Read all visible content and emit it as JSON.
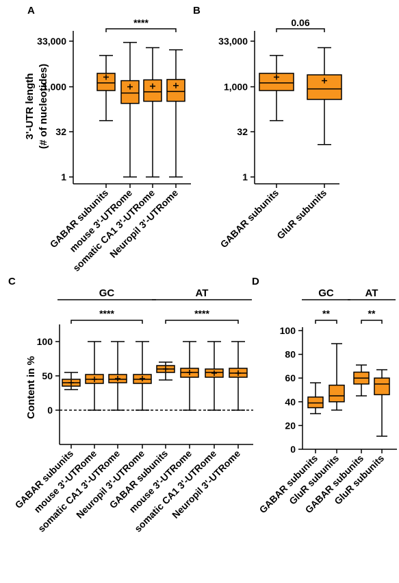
{
  "chart_data": [
    {
      "panel": "A",
      "type": "box",
      "ylabel": [
        "3'-UTR length",
        "(# of nucleotides)"
      ],
      "yscale": "log",
      "ylim": [
        1,
        33000
      ],
      "yticks": [
        {
          "v": 1,
          "label": "1"
        },
        {
          "v": 32,
          "label": "32"
        },
        {
          "v": 1000,
          "label": "1,000"
        },
        {
          "v": 33000,
          "label": "33,000"
        }
      ],
      "categories": [
        "GABAR subunits",
        "mouse 3'-UTRome",
        "somatic CA1 3'-UTRome",
        "Neuropil 3'-UTRome"
      ],
      "boxes": [
        {
          "min": 75,
          "q1": 750,
          "median": 1350,
          "q3": 2800,
          "max": 11000,
          "mean": 2100
        },
        {
          "min": 1,
          "q1": 280,
          "median": 620,
          "q3": 1600,
          "max": 30000,
          "mean": 1000
        },
        {
          "min": 1,
          "q1": 330,
          "median": 680,
          "q3": 1700,
          "max": 20000,
          "mean": 1050
        },
        {
          "min": 1,
          "q1": 330,
          "median": 700,
          "q3": 1750,
          "max": 17000,
          "mean": 1100
        }
      ],
      "significance": [
        {
          "from": 0,
          "to": 3,
          "label": "****"
        }
      ]
    },
    {
      "panel": "B",
      "type": "box",
      "yscale": "log",
      "ylim": [
        1,
        33000
      ],
      "yticks": [
        {
          "v": 1,
          "label": "1"
        },
        {
          "v": 32,
          "label": "32"
        },
        {
          "v": 1000,
          "label": "1,000"
        },
        {
          "v": 33000,
          "label": "33,000"
        }
      ],
      "categories": [
        "GABAR subunits",
        "GluR subunits"
      ],
      "boxes": [
        {
          "min": 75,
          "q1": 750,
          "median": 1350,
          "q3": 2800,
          "max": 11000,
          "mean": 2100
        },
        {
          "min": 12,
          "q1": 380,
          "median": 850,
          "q3": 2500,
          "max": 20000,
          "mean": 1600
        }
      ],
      "significance": [
        {
          "from": 0,
          "to": 1,
          "label": "0.06"
        }
      ]
    },
    {
      "panel": "C",
      "type": "box",
      "ylabel": [
        "Content in %"
      ],
      "yscale": "linear",
      "ylim": [
        -50,
        120
      ],
      "yticks": [
        {
          "v": 0,
          "label": "0"
        },
        {
          "v": 50,
          "label": "50"
        },
        {
          "v": 100,
          "label": "100"
        }
      ],
      "categories": [
        "GABAR subunits",
        "mouse 3'-UTRome",
        "somatic CA1 3'-UTRome",
        "Neuropil 3'-UTRome",
        "GABAR subunits",
        "mouse 3'-UTRome",
        "somatic CA1 3'-UTRome",
        "Neuropil 3'-UTRome"
      ],
      "boxes": [
        {
          "min": 30,
          "q1": 35,
          "median": 40,
          "q3": 45,
          "max": 55,
          "mean": 40
        },
        {
          "min": 0,
          "q1": 39,
          "median": 45,
          "q3": 52,
          "max": 100,
          "mean": 45
        },
        {
          "min": 0,
          "q1": 40,
          "median": 45,
          "q3": 52,
          "max": 100,
          "mean": 46
        },
        {
          "min": 0,
          "q1": 39,
          "median": 45,
          "q3": 52,
          "max": 100,
          "mean": 46
        },
        {
          "min": 44,
          "q1": 55,
          "median": 60,
          "q3": 65,
          "max": 70,
          "mean": 60
        },
        {
          "min": 0,
          "q1": 48,
          "median": 55,
          "q3": 61,
          "max": 100,
          "mean": 55
        },
        {
          "min": 0,
          "q1": 48,
          "median": 55,
          "q3": 60,
          "max": 100,
          "mean": 54
        },
        {
          "min": 0,
          "q1": 48,
          "median": 54,
          "q3": 61,
          "max": 100,
          "mean": 54
        }
      ],
      "groups": [
        {
          "label": "GC",
          "from": 0,
          "to": 3
        },
        {
          "label": "AT",
          "from": 4,
          "to": 7
        }
      ],
      "significance": [
        {
          "from": 0,
          "to": 3,
          "label": "****"
        },
        {
          "from": 4,
          "to": 7,
          "label": "****"
        }
      ],
      "zero_line": "dashed"
    },
    {
      "panel": "D",
      "type": "box",
      "yscale": "linear",
      "ylim": [
        0,
        100
      ],
      "yticks": [
        {
          "v": 0,
          "label": "0"
        },
        {
          "v": 20,
          "label": "20"
        },
        {
          "v": 40,
          "label": "40"
        },
        {
          "v": 60,
          "label": "60"
        },
        {
          "v": 80,
          "label": "80"
        },
        {
          "v": 100,
          "label": "100"
        }
      ],
      "categories": [
        "GABAR subunits",
        "GluR subunits",
        "GABAR subunits",
        "GluR subunits"
      ],
      "boxes": [
        {
          "min": 30,
          "q1": 35,
          "median": 39,
          "q3": 44,
          "max": 56
        },
        {
          "min": 33,
          "q1": 40,
          "median": 45,
          "q3": 54,
          "max": 89
        },
        {
          "min": 45,
          "q1": 55,
          "median": 60,
          "q3": 65,
          "max": 71
        },
        {
          "min": 11,
          "q1": 46,
          "median": 55,
          "q3": 60,
          "max": 67
        }
      ],
      "groups": [
        {
          "label": "GC",
          "from": 0,
          "to": 1
        },
        {
          "label": "AT",
          "from": 2,
          "to": 3
        }
      ],
      "significance": [
        {
          "from": 0,
          "to": 1,
          "label": "**"
        },
        {
          "from": 2,
          "to": 3,
          "label": "**"
        }
      ]
    }
  ],
  "style": {
    "box_fill": "#f7941d",
    "line": "#000000"
  }
}
